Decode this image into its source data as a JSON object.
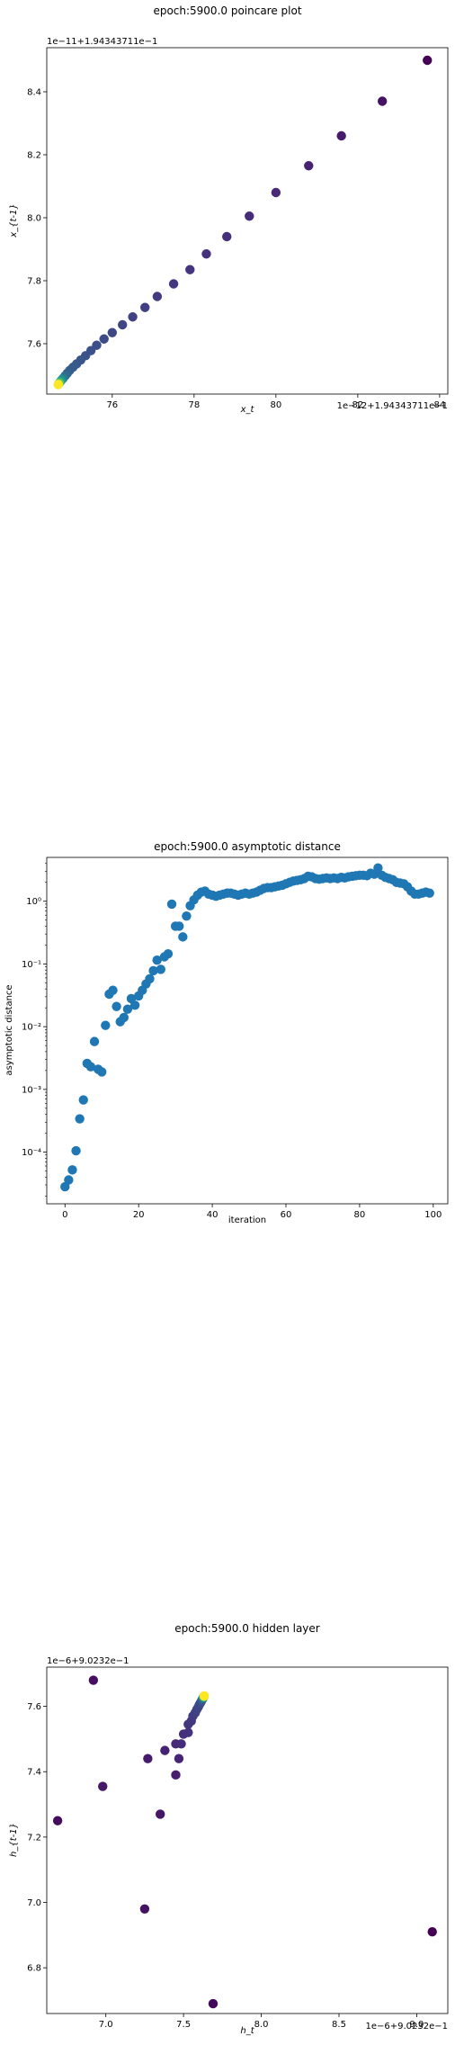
{
  "chart_data": [
    {
      "type": "scatter",
      "title": "epoch:5900.0 poincare plot",
      "xlabel": "x_t",
      "ylabel": "x_{t-1}",
      "x_offset_label": "1e−12+1.94343711e−1",
      "y_offset_label": "1e−11+1.94343711e−1",
      "xlim": [
        74.4,
        84.2
      ],
      "ylim": [
        7.44,
        8.54
      ],
      "xticks": [
        76,
        78,
        80,
        82,
        84
      ],
      "xtick_labels": [
        "76",
        "78",
        "80",
        "82",
        "84"
      ],
      "yticks": [
        7.6,
        7.8,
        8.0,
        8.2,
        8.4
      ],
      "ytick_labels": [
        "7.6",
        "7.8",
        "8.0",
        "8.2",
        "8.4"
      ],
      "color_map": "viridis",
      "color_note": "point color from dark purple (early) to yellow (late)",
      "points": [
        {
          "x": 83.7,
          "y": 8.5,
          "c": 0.0
        },
        {
          "x": 82.6,
          "y": 8.37,
          "c": 0.05
        },
        {
          "x": 81.6,
          "y": 8.26,
          "c": 0.08
        },
        {
          "x": 80.8,
          "y": 8.165,
          "c": 0.1
        },
        {
          "x": 80.0,
          "y": 8.08,
          "c": 0.12
        },
        {
          "x": 79.35,
          "y": 8.005,
          "c": 0.13
        },
        {
          "x": 78.8,
          "y": 7.94,
          "c": 0.14
        },
        {
          "x": 78.3,
          "y": 7.885,
          "c": 0.15
        },
        {
          "x": 77.9,
          "y": 7.835,
          "c": 0.16
        },
        {
          "x": 77.5,
          "y": 7.79,
          "c": 0.17
        },
        {
          "x": 77.1,
          "y": 7.75,
          "c": 0.18
        },
        {
          "x": 76.8,
          "y": 7.715,
          "c": 0.19
        },
        {
          "x": 76.5,
          "y": 7.685,
          "c": 0.2
        },
        {
          "x": 76.25,
          "y": 7.66,
          "c": 0.21
        },
        {
          "x": 76.0,
          "y": 7.635,
          "c": 0.22
        },
        {
          "x": 75.8,
          "y": 7.615,
          "c": 0.23
        },
        {
          "x": 75.62,
          "y": 7.595,
          "c": 0.24
        },
        {
          "x": 75.48,
          "y": 7.578,
          "c": 0.25
        },
        {
          "x": 75.35,
          "y": 7.562,
          "c": 0.26
        },
        {
          "x": 75.23,
          "y": 7.548,
          "c": 0.27
        },
        {
          "x": 75.13,
          "y": 7.536,
          "c": 0.28
        },
        {
          "x": 75.04,
          "y": 7.525,
          "c": 0.29
        },
        {
          "x": 74.96,
          "y": 7.515,
          "c": 0.3
        },
        {
          "x": 74.9,
          "y": 7.506,
          "c": 0.32
        },
        {
          "x": 74.85,
          "y": 7.498,
          "c": 0.36
        },
        {
          "x": 74.8,
          "y": 7.49,
          "c": 0.42
        },
        {
          "x": 74.76,
          "y": 7.484,
          "c": 0.5
        },
        {
          "x": 74.73,
          "y": 7.479,
          "c": 0.6
        },
        {
          "x": 74.71,
          "y": 7.475,
          "c": 0.72
        },
        {
          "x": 74.69,
          "y": 7.472,
          "c": 0.85
        },
        {
          "x": 74.68,
          "y": 7.47,
          "c": 1.0
        }
      ]
    },
    {
      "type": "scatter",
      "title": "epoch:5900.0 asymptotic distance",
      "xlabel": "iteration",
      "ylabel": "asymptotic distance",
      "yscale": "log",
      "xlim": [
        -4.95,
        103.95
      ],
      "ylim": [
        1.5e-05,
        5.0
      ],
      "xticks": [
        0,
        20,
        40,
        60,
        80,
        100
      ],
      "xtick_labels": [
        "0",
        "20",
        "40",
        "60",
        "80",
        "100"
      ],
      "yticks": [
        0.0001,
        0.001,
        0.01,
        0.1,
        1
      ],
      "ytick_labels": [
        "10⁻⁴",
        "10⁻³",
        "10⁻²",
        "10⁻¹",
        "10⁰"
      ],
      "color": "#1f77b4",
      "x": [
        0,
        1,
        2,
        3,
        4,
        5,
        6,
        7,
        8,
        9,
        10,
        11,
        12,
        13,
        14,
        15,
        16,
        17,
        18,
        19,
        20,
        21,
        22,
        23,
        24,
        25,
        26,
        27,
        28,
        29,
        30,
        31,
        32,
        33,
        34,
        35,
        36,
        37,
        38,
        39,
        40,
        41,
        42,
        43,
        44,
        45,
        46,
        47,
        48,
        49,
        50,
        51,
        52,
        53,
        54,
        55,
        56,
        57,
        58,
        59,
        60,
        61,
        62,
        63,
        64,
        65,
        66,
        67,
        68,
        69,
        70,
        71,
        72,
        73,
        74,
        75,
        76,
        77,
        78,
        79,
        80,
        81,
        82,
        83,
        84,
        85,
        86,
        87,
        88,
        89,
        90,
        91,
        92,
        93,
        94,
        95,
        96,
        97,
        98,
        99
      ],
      "y": [
        2.8e-05,
        3.6e-05,
        5.2e-05,
        0.000105,
        0.00034,
        0.00068,
        0.0026,
        0.0023,
        0.0058,
        0.0021,
        0.0019,
        0.0105,
        0.033,
        0.038,
        0.021,
        0.012,
        0.014,
        0.019,
        0.028,
        0.022,
        0.031,
        0.038,
        0.048,
        0.058,
        0.078,
        0.115,
        0.082,
        0.13,
        0.145,
        0.9,
        0.4,
        0.4,
        0.27,
        0.58,
        0.85,
        1.05,
        1.25,
        1.4,
        1.45,
        1.3,
        1.25,
        1.2,
        1.25,
        1.3,
        1.35,
        1.35,
        1.3,
        1.25,
        1.3,
        1.35,
        1.3,
        1.35,
        1.4,
        1.5,
        1.6,
        1.65,
        1.65,
        1.7,
        1.75,
        1.8,
        1.9,
        2.0,
        2.1,
        2.15,
        2.2,
        2.3,
        2.5,
        2.45,
        2.3,
        2.25,
        2.3,
        2.35,
        2.3,
        2.35,
        2.3,
        2.4,
        2.35,
        2.45,
        2.5,
        2.55,
        2.6,
        2.6,
        2.55,
        2.8,
        2.7,
        3.4,
        2.6,
        2.4,
        2.3,
        2.2,
        2.0,
        1.95,
        1.9,
        1.7,
        1.45,
        1.3,
        1.3,
        1.35,
        1.4,
        1.35
      ]
    },
    {
      "type": "scatter",
      "title": "epoch:5900.0 hidden layer",
      "xlabel": "h_t",
      "ylabel": "h_{t-1}",
      "x_offset_label": "1e−6+9.0232e−1",
      "y_offset_label": "1e−6+9.0232e−1",
      "xlim": [
        6.62,
        9.2
      ],
      "ylim": [
        6.66,
        7.72
      ],
      "xticks": [
        7.0,
        7.5,
        8.0,
        8.5,
        9.0
      ],
      "xtick_labels": [
        "7.0",
        "7.5",
        "8.0",
        "8.5",
        "9.0"
      ],
      "yticks": [
        6.8,
        7.0,
        7.2,
        7.4,
        7.6
      ],
      "ytick_labels": [
        "6.8",
        "7.0",
        "7.2",
        "7.4",
        "7.6"
      ],
      "color_map": "viridis",
      "points": [
        {
          "x": 9.1,
          "y": 6.91,
          "c": 0.0
        },
        {
          "x": 7.69,
          "y": 6.69,
          "c": 0.02
        },
        {
          "x": 6.69,
          "y": 7.25,
          "c": 0.03
        },
        {
          "x": 6.92,
          "y": 7.68,
          "c": 0.04
        },
        {
          "x": 7.25,
          "y": 6.98,
          "c": 0.05
        },
        {
          "x": 7.35,
          "y": 7.27,
          "c": 0.06
        },
        {
          "x": 6.98,
          "y": 7.355,
          "c": 0.07
        },
        {
          "x": 7.27,
          "y": 7.44,
          "c": 0.08
        },
        {
          "x": 7.45,
          "y": 7.39,
          "c": 0.09
        },
        {
          "x": 7.38,
          "y": 7.465,
          "c": 0.1
        },
        {
          "x": 7.47,
          "y": 7.44,
          "c": 0.11
        },
        {
          "x": 7.45,
          "y": 7.485,
          "c": 0.12
        },
        {
          "x": 7.485,
          "y": 7.485,
          "c": 0.13
        },
        {
          "x": 7.5,
          "y": 7.515,
          "c": 0.14
        },
        {
          "x": 7.53,
          "y": 7.52,
          "c": 0.15
        },
        {
          "x": 7.53,
          "y": 7.545,
          "c": 0.16
        },
        {
          "x": 7.55,
          "y": 7.555,
          "c": 0.17
        },
        {
          "x": 7.56,
          "y": 7.57,
          "c": 0.18
        },
        {
          "x": 7.575,
          "y": 7.58,
          "c": 0.19
        },
        {
          "x": 7.585,
          "y": 7.59,
          "c": 0.2
        },
        {
          "x": 7.595,
          "y": 7.598,
          "c": 0.21
        },
        {
          "x": 7.602,
          "y": 7.605,
          "c": 0.22
        },
        {
          "x": 7.608,
          "y": 7.61,
          "c": 0.23
        },
        {
          "x": 7.614,
          "y": 7.615,
          "c": 0.24
        },
        {
          "x": 7.618,
          "y": 7.619,
          "c": 0.26
        },
        {
          "x": 7.622,
          "y": 7.622,
          "c": 0.3
        },
        {
          "x": 7.625,
          "y": 7.625,
          "c": 0.36
        },
        {
          "x": 7.627,
          "y": 7.627,
          "c": 0.45
        },
        {
          "x": 7.629,
          "y": 7.629,
          "c": 0.58
        },
        {
          "x": 7.631,
          "y": 7.63,
          "c": 0.72
        },
        {
          "x": 7.632,
          "y": 7.631,
          "c": 0.86
        },
        {
          "x": 7.633,
          "y": 7.632,
          "c": 1.0
        }
      ]
    }
  ]
}
